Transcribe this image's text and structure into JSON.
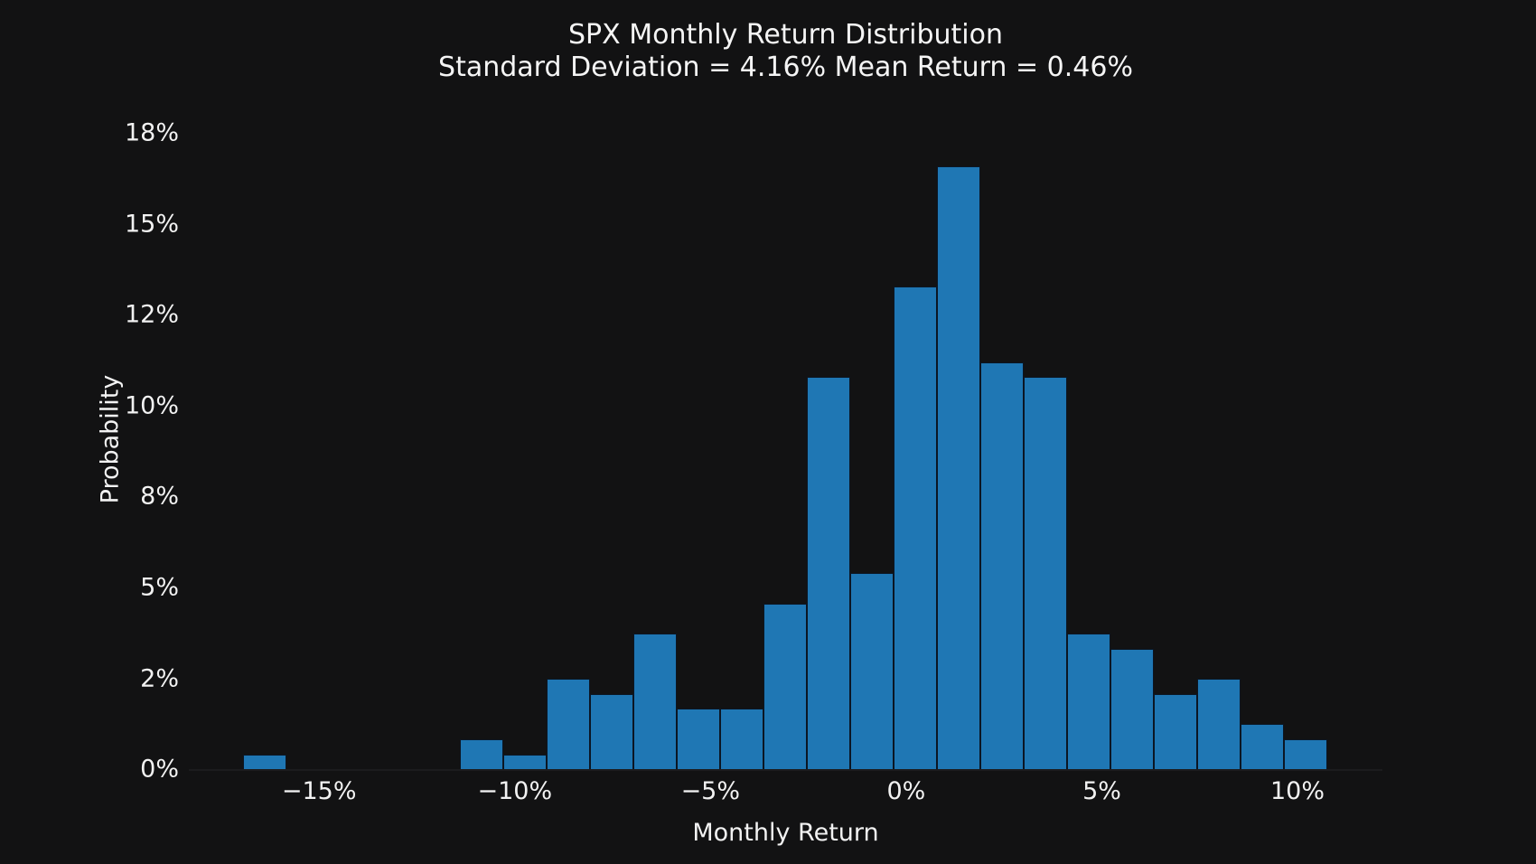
{
  "page": {
    "title_line1": "SPX Monthly Return Distribution",
    "title_line2": "Standard Deviation = 4.16% Mean Return = 0.46%"
  },
  "chart_data": {
    "type": "bar",
    "subtype": "histogram",
    "title": "SPX Monthly Return Distribution",
    "subtitle": "Standard Deviation = 4.16% Mean Return = 0.46%",
    "xlabel": "Monthly Return",
    "ylabel": "Probability",
    "stats_shown": {
      "standard_deviation_pct": 4.16,
      "mean_return_pct": 0.46
    },
    "bins": {
      "start_pct": -16.94,
      "width_pct": 1.1084,
      "count": 25
    },
    "probabilities_pct": [
      0.41,
      0,
      0,
      0,
      0,
      0.83,
      0.41,
      2.49,
      2.07,
      3.73,
      1.66,
      1.66,
      4.56,
      10.79,
      5.39,
      13.28,
      16.6,
      11.2,
      10.79,
      3.73,
      3.32,
      2.07,
      2.49,
      1.24,
      0.83
    ],
    "x_ticks": [
      {
        "value": -15,
        "label": "−15%"
      },
      {
        "value": -10,
        "label": "−10%"
      },
      {
        "value": -5,
        "label": "−5%"
      },
      {
        "value": 0,
        "label": "0%"
      },
      {
        "value": 5,
        "label": "5%"
      },
      {
        "value": 10,
        "label": "10%"
      }
    ],
    "y_ticks": [
      {
        "value": 0,
        "label": "0%"
      },
      {
        "value": 2.5,
        "label": "2%"
      },
      {
        "value": 5,
        "label": "5%"
      },
      {
        "value": 7.5,
        "label": "8%"
      },
      {
        "value": 10,
        "label": "10%"
      },
      {
        "value": 12.5,
        "label": "12%"
      },
      {
        "value": 15,
        "label": "15%"
      },
      {
        "value": 17.5,
        "label": "18%"
      }
    ],
    "xlim": [
      -18.33,
      12.17
    ],
    "ylim": [
      0,
      18.13
    ],
    "grid": false,
    "legend": null,
    "colors": {
      "background": "#121213",
      "bar_fill": "#1f77b4",
      "bar_edge": "#0b1624",
      "text": "#f2f2f2"
    }
  }
}
